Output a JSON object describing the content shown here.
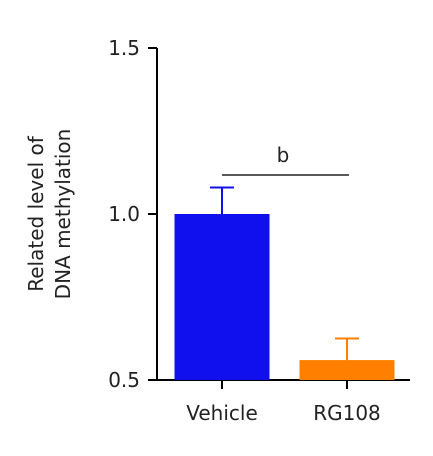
{
  "chart_data": {
    "type": "bar",
    "categories": [
      "Vehicle",
      "RG108"
    ],
    "values": [
      1.0,
      0.56
    ],
    "error_upper": [
      0.08,
      0.065
    ],
    "bar_colors": [
      "#1010ee",
      "#ff8000"
    ],
    "ylabel_lines": [
      "Related level of",
      "DNA methylation"
    ],
    "ylim": [
      0.5,
      1.5
    ],
    "yticks": [
      "0.5",
      "1.0",
      "1.5"
    ],
    "ytick_values": [
      0.5,
      1.0,
      1.5
    ],
    "annotation": "b",
    "grid": false
  }
}
